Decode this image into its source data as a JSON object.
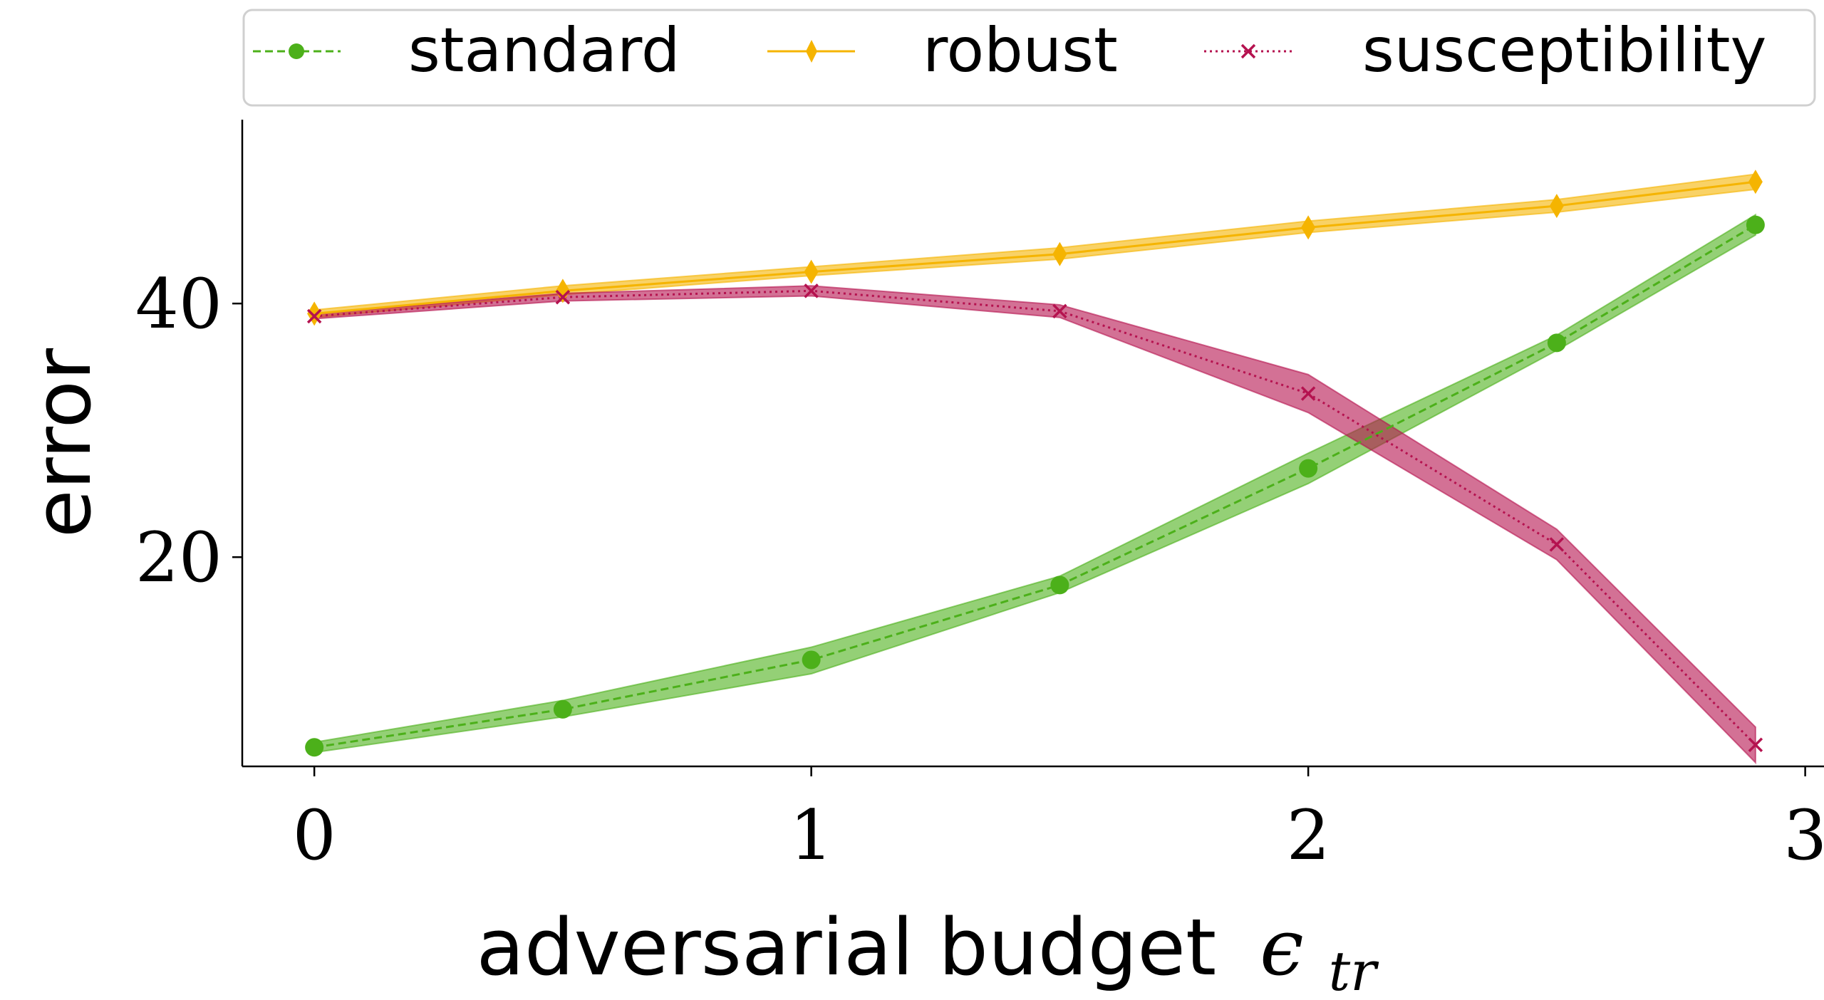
{
  "chart_data": {
    "type": "line",
    "title": "",
    "xlabel": "adversarial budget",
    "xlabel_symbol": "ϵ",
    "xlabel_subscript": "tr",
    "ylabel": "error",
    "xlim": [
      -0.145,
      3.045
    ],
    "ylim": [
      3.5,
      54.5
    ],
    "xticks": [
      0,
      1,
      2,
      3
    ],
    "xtick_labels": [
      "0",
      "1",
      "2",
      "3"
    ],
    "yticks": [
      20,
      40
    ],
    "ytick_labels": [
      "20",
      "40"
    ],
    "grid": false,
    "legend_position": "top",
    "x": [
      0,
      0.5,
      1,
      1.5,
      2,
      2.5,
      2.9
    ],
    "series": [
      {
        "name": "standard",
        "color": "#4CB01A",
        "line_style": "dashed",
        "marker": "circle",
        "values": [
          5.0,
          8.0,
          11.9,
          17.8,
          27.0,
          36.9,
          46.2
        ],
        "band_lower": [
          4.6,
          7.4,
          10.8,
          17.2,
          25.8,
          36.3,
          45.4
        ],
        "band_upper": [
          5.4,
          8.7,
          12.9,
          18.5,
          28.2,
          37.5,
          47.0
        ]
      },
      {
        "name": "robust",
        "color": "#F5B400",
        "line_style": "solid",
        "marker": "thin_diamond",
        "values": [
          39.2,
          41.0,
          42.5,
          43.9,
          46.0,
          47.7,
          49.6
        ],
        "band_lower": [
          38.9,
          40.7,
          42.2,
          43.5,
          45.6,
          47.2,
          49.0
        ],
        "band_upper": [
          39.5,
          41.4,
          42.9,
          44.4,
          46.5,
          48.2,
          50.2
        ]
      },
      {
        "name": "susceptibility",
        "color": "#B5124F",
        "line_style": "dotted",
        "marker": "x",
        "values": [
          39.0,
          40.5,
          41.0,
          39.4,
          32.9,
          21.0,
          5.2
        ],
        "band_lower": [
          38.8,
          40.2,
          40.6,
          38.9,
          31.4,
          19.8,
          3.8
        ],
        "band_upper": [
          39.2,
          40.8,
          41.4,
          39.9,
          34.4,
          22.2,
          6.6
        ]
      }
    ]
  }
}
